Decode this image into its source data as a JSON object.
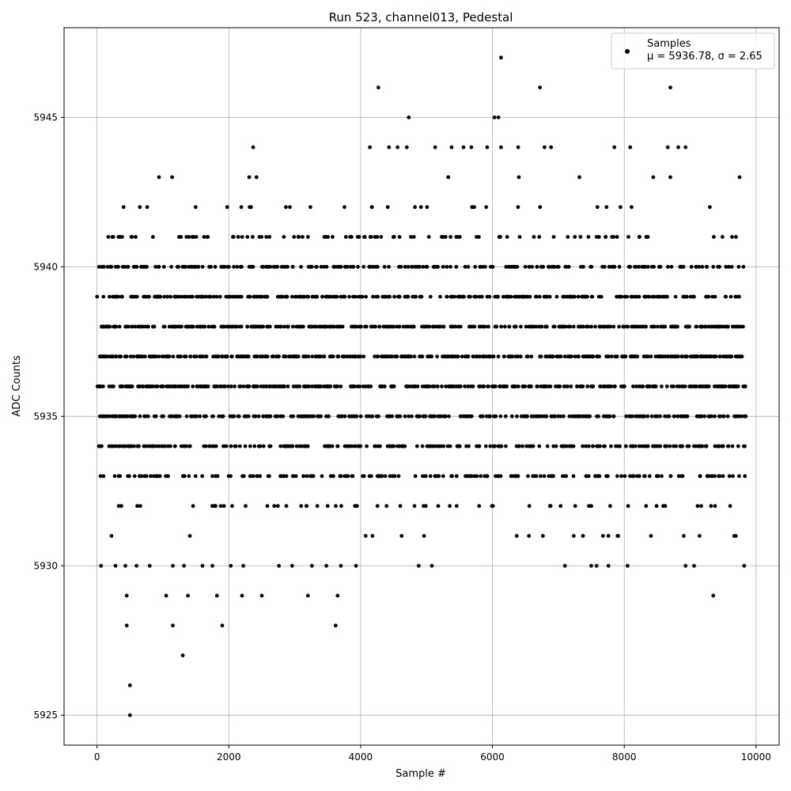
{
  "chart_data": {
    "type": "scatter",
    "title": "Run 523, channel013, Pedestal",
    "xlabel": "Sample #",
    "ylabel": "ADC Counts",
    "xlim": [
      -500,
      10350
    ],
    "ylim": [
      5924,
      5948
    ],
    "xticks": [
      0,
      2000,
      4000,
      6000,
      8000,
      10000
    ],
    "yticks": [
      5925,
      5930,
      5935,
      5940,
      5945
    ],
    "grid": true,
    "legend": {
      "placement": "top-right",
      "label": "Samples",
      "stats": "μ = 5936.78, σ = 2.65"
    },
    "series": [
      {
        "name": "Samples",
        "color": "#000000",
        "x_range": [
          0,
          9850
        ],
        "mean": 5936.78,
        "std": 2.65,
        "dense_levels": [
          5931,
          5932,
          5933,
          5934,
          5935,
          5936,
          5937,
          5938,
          5939,
          5940,
          5941,
          5942
        ],
        "sparse_points": [
          {
            "x": 500,
            "y": 5925
          },
          {
            "x": 500,
            "y": 5926
          },
          {
            "x": 1300,
            "y": 5927
          },
          {
            "x": 450,
            "y": 5928
          },
          {
            "x": 1150,
            "y": 5928
          },
          {
            "x": 1900,
            "y": 5928
          },
          {
            "x": 3620,
            "y": 5928
          },
          {
            "x": 450,
            "y": 5929
          },
          {
            "x": 1050,
            "y": 5929
          },
          {
            "x": 1380,
            "y": 5929
          },
          {
            "x": 1820,
            "y": 5929
          },
          {
            "x": 2200,
            "y": 5929
          },
          {
            "x": 2500,
            "y": 5929
          },
          {
            "x": 3200,
            "y": 5929
          },
          {
            "x": 3650,
            "y": 5929
          },
          {
            "x": 9350,
            "y": 5929
          },
          {
            "x": 60,
            "y": 5930
          },
          {
            "x": 280,
            "y": 5930
          },
          {
            "x": 430,
            "y": 5930
          },
          {
            "x": 600,
            "y": 5930
          },
          {
            "x": 800,
            "y": 5930
          },
          {
            "x": 1150,
            "y": 5930
          },
          {
            "x": 1320,
            "y": 5930
          },
          {
            "x": 1600,
            "y": 5930
          },
          {
            "x": 1750,
            "y": 5930
          },
          {
            "x": 2030,
            "y": 5930
          },
          {
            "x": 2220,
            "y": 5930
          },
          {
            "x": 2760,
            "y": 5930
          },
          {
            "x": 2960,
            "y": 5930
          },
          {
            "x": 3260,
            "y": 5930
          },
          {
            "x": 3480,
            "y": 5930
          },
          {
            "x": 3700,
            "y": 5930
          },
          {
            "x": 3930,
            "y": 5930
          },
          {
            "x": 4880,
            "y": 5930
          },
          {
            "x": 5080,
            "y": 5930
          },
          {
            "x": 7100,
            "y": 5930
          },
          {
            "x": 7500,
            "y": 5930
          },
          {
            "x": 7580,
            "y": 5930
          },
          {
            "x": 7760,
            "y": 5930
          },
          {
            "x": 8050,
            "y": 5930
          },
          {
            "x": 8930,
            "y": 5930
          },
          {
            "x": 9060,
            "y": 5930
          },
          {
            "x": 9820,
            "y": 5930
          },
          {
            "x": 940,
            "y": 5943
          },
          {
            "x": 1140,
            "y": 5943
          },
          {
            "x": 2310,
            "y": 5943
          },
          {
            "x": 2420,
            "y": 5943
          },
          {
            "x": 5330,
            "y": 5943
          },
          {
            "x": 6400,
            "y": 5943
          },
          {
            "x": 7320,
            "y": 5943
          },
          {
            "x": 8440,
            "y": 5943
          },
          {
            "x": 8700,
            "y": 5943
          },
          {
            "x": 9750,
            "y": 5943
          },
          {
            "x": 2370,
            "y": 5944
          },
          {
            "x": 4140,
            "y": 5944
          },
          {
            "x": 4430,
            "y": 5944
          },
          {
            "x": 4560,
            "y": 5944
          },
          {
            "x": 4700,
            "y": 5944
          },
          {
            "x": 5130,
            "y": 5944
          },
          {
            "x": 5380,
            "y": 5944
          },
          {
            "x": 5560,
            "y": 5944
          },
          {
            "x": 5680,
            "y": 5944
          },
          {
            "x": 5920,
            "y": 5944
          },
          {
            "x": 6130,
            "y": 5944
          },
          {
            "x": 6390,
            "y": 5944
          },
          {
            "x": 6790,
            "y": 5944
          },
          {
            "x": 6890,
            "y": 5944
          },
          {
            "x": 7850,
            "y": 5944
          },
          {
            "x": 8090,
            "y": 5944
          },
          {
            "x": 8660,
            "y": 5944
          },
          {
            "x": 8820,
            "y": 5944
          },
          {
            "x": 8930,
            "y": 5944
          },
          {
            "x": 4730,
            "y": 5945
          },
          {
            "x": 6030,
            "y": 5945
          },
          {
            "x": 6090,
            "y": 5945
          },
          {
            "x": 4270,
            "y": 5946
          },
          {
            "x": 6720,
            "y": 5946
          },
          {
            "x": 8700,
            "y": 5946
          },
          {
            "x": 6130,
            "y": 5947
          }
        ]
      }
    ]
  }
}
